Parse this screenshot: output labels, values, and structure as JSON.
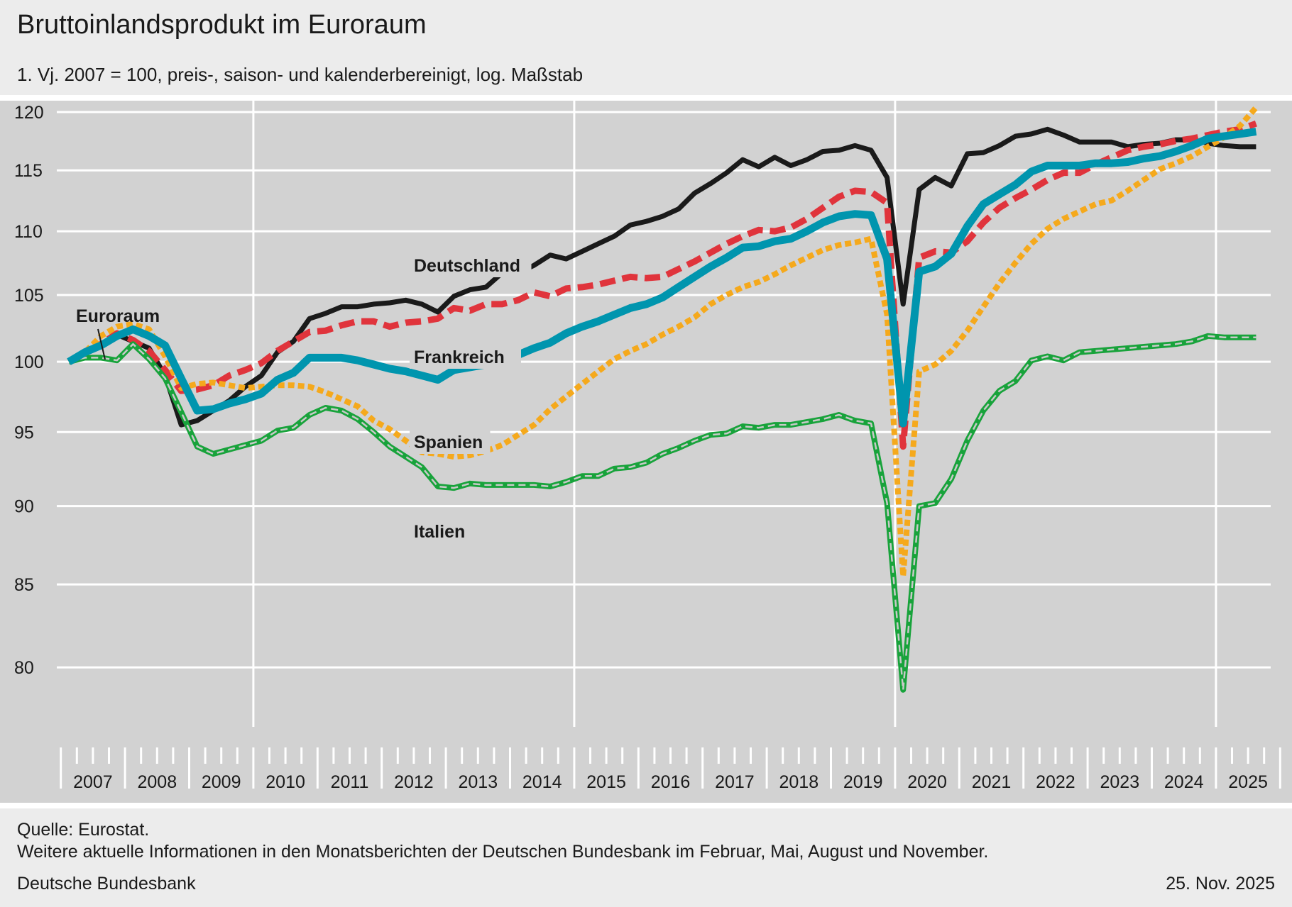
{
  "header": {
    "title": "Bruttoinlandsprodukt im Euroraum",
    "subtitle": "1. Vj. 2007 = 100, preis-, saison- und kalenderbereinigt, log. Maßstab"
  },
  "footer": {
    "source": "Quelle: Eurostat.",
    "note": "Weitere aktuelle Informationen in den Monatsberichten der Deutschen Bundesbank im Februar, Mai, August und November.",
    "publisher": "Deutsche Bundesbank",
    "date": "25. Nov. 2025"
  },
  "chart_data": {
    "type": "line",
    "title": "Bruttoinlandsprodukt im Euroraum",
    "subtitle": "1. Vj. 2007 = 100, preis-, saison- und kalenderbereinigt, log. Maßstab",
    "y_scale": "log",
    "ylim": [
      77,
      121
    ],
    "yticks": [
      80,
      85,
      90,
      95,
      100,
      105,
      110,
      115,
      120
    ],
    "x_start": "2007 Q1",
    "x_end": "2025 Q3",
    "xlim": [
      "2007 Q1",
      "2025 Q4"
    ],
    "year_labels": [
      "2007",
      "2008",
      "2009",
      "2010",
      "2011",
      "2012",
      "2013",
      "2014",
      "2015",
      "2016",
      "2017",
      "2018",
      "2019",
      "2020",
      "2021",
      "2022",
      "2023",
      "2024",
      "2025"
    ],
    "major_gridlines_at": [
      "2010",
      "2015",
      "2020",
      "2025"
    ],
    "grid": true,
    "legend": "inline labels",
    "series": [
      {
        "name": "Deutschland",
        "color": "#1a1a1a",
        "style": "solid",
        "values": [
          100,
          100.6,
          101.2,
          102,
          101.5,
          101,
          99,
          95.5,
          95.8,
          96.5,
          97.2,
          98.2,
          99,
          100.7,
          101.5,
          103.2,
          103.6,
          104.1,
          104.1,
          104.3,
          104.4,
          104.6,
          104.3,
          103.7,
          104.9,
          105.4,
          105.6,
          106.7,
          106.7,
          107.3,
          108.1,
          107.8,
          108.4,
          109,
          109.6,
          110.5,
          110.8,
          111.2,
          111.8,
          113.1,
          113.9,
          114.8,
          115.9,
          115.3,
          116.1,
          115.4,
          115.9,
          116.6,
          116.7,
          117.1,
          116.7,
          114.4,
          104.3,
          113.4,
          114.4,
          113.7,
          116.4,
          116.5,
          117.1,
          117.9,
          118.1,
          118.5,
          118,
          117.4,
          117.4,
          117.4,
          117,
          117.2,
          117.3,
          117.6,
          117.6,
          117.3,
          117.1,
          117,
          117
        ]
      },
      {
        "name": "Frankreich",
        "color": "#e0343c",
        "style": "dashed",
        "values": [
          100,
          100.6,
          101.3,
          102.1,
          101.6,
          100.8,
          99.4,
          97.9,
          98,
          98.3,
          99,
          99.4,
          99.9,
          100.8,
          101.5,
          102.2,
          102.3,
          102.7,
          103,
          103,
          102.6,
          102.9,
          103,
          103.2,
          104,
          103.8,
          104.3,
          104.3,
          104.6,
          105.2,
          104.9,
          105.5,
          105.6,
          105.8,
          106.1,
          106.4,
          106.3,
          106.4,
          107,
          107.6,
          108.3,
          109,
          109.6,
          110.1,
          110,
          110.3,
          111,
          111.9,
          112.8,
          113.3,
          113.2,
          112.3,
          94,
          107.9,
          108.4,
          108.3,
          109.2,
          110.7,
          111.9,
          112.7,
          113.4,
          114.2,
          114.8,
          114.8,
          115.5,
          116.1,
          116.7,
          117,
          117.2,
          117.5,
          117.7,
          118,
          118.3,
          118.5,
          119
        ]
      },
      {
        "name": "Spanien",
        "color": "#f5a91c",
        "style": "dotted",
        "values": [
          100,
          100.7,
          101.9,
          102.6,
          102.8,
          102.4,
          100.4,
          98.1,
          98.4,
          98.5,
          98.3,
          98.1,
          98.2,
          98.3,
          98.3,
          98.2,
          97.8,
          97.3,
          96.8,
          95.8,
          95.2,
          94.4,
          93.6,
          93.5,
          93.3,
          93.4,
          93.7,
          94.1,
          94.8,
          95.5,
          96.6,
          97.5,
          98.4,
          99.3,
          100.2,
          100.8,
          101.3,
          102,
          102.6,
          103.3,
          104.3,
          105,
          105.6,
          106,
          106.6,
          107.3,
          107.9,
          108.5,
          108.9,
          109.1,
          109.4,
          103.5,
          85.5,
          99.3,
          99.8,
          100.8,
          102.3,
          104.1,
          105.9,
          107.5,
          109,
          110.2,
          111,
          111.6,
          112.2,
          112.5,
          113.3,
          114.2,
          115.1,
          115.6,
          116.2,
          117,
          117.8,
          118.8,
          120.4
        ]
      },
      {
        "name": "Italien",
        "color": "#18a33b",
        "style": "solid-green-with-grey-core",
        "values": [
          100,
          100.3,
          100.3,
          100.1,
          101.3,
          100.2,
          98.8,
          96.4,
          94,
          93.5,
          93.8,
          94.1,
          94.4,
          95.1,
          95.3,
          96.2,
          96.7,
          96.5,
          95.9,
          95,
          94,
          93.3,
          92.6,
          91.3,
          91.2,
          91.5,
          91.4,
          91.4,
          91.4,
          91.4,
          91.3,
          91.6,
          92,
          92,
          92.5,
          92.6,
          92.9,
          93.5,
          93.9,
          94.4,
          94.8,
          94.9,
          95.4,
          95.3,
          95.5,
          95.5,
          95.7,
          95.9,
          96.2,
          95.8,
          95.6,
          90.2,
          78.7,
          90,
          90.2,
          91.8,
          94.4,
          96.5,
          97.9,
          98.6,
          100.1,
          100.4,
          100.1,
          100.7,
          100.8,
          100.9,
          101,
          101.1,
          101.2,
          101.3,
          101.5,
          101.9,
          101.8,
          101.8,
          101.8
        ]
      },
      {
        "name": "Euroraum",
        "color": "#0095ae",
        "style": "solid-thick",
        "values": [
          100,
          100.7,
          101.2,
          101.9,
          102.4,
          101.9,
          101.2,
          98.8,
          96.5,
          96.6,
          97,
          97.3,
          97.7,
          98.7,
          99.2,
          100.3,
          100.3,
          100.3,
          100.1,
          99.8,
          99.5,
          99.3,
          99,
          98.7,
          99.4,
          99.6,
          99.8,
          100.2,
          100.5,
          101,
          101.4,
          102.1,
          102.6,
          103,
          103.5,
          104,
          104.3,
          104.8,
          105.6,
          106.4,
          107.2,
          107.9,
          108.7,
          108.8,
          109.2,
          109.4,
          110,
          110.7,
          111.2,
          111.4,
          111.3,
          107.8,
          95.6,
          106.8,
          107.2,
          108.2,
          110.4,
          112.2,
          113,
          113.8,
          114.9,
          115.4,
          115.4,
          115.4,
          115.6,
          115.6,
          115.7,
          116,
          116.2,
          116.6,
          117.1,
          117.7,
          117.9,
          118.1,
          118.3
        ]
      }
    ],
    "inline_labels": [
      "Deutschland",
      "Frankreich",
      "Spanien",
      "Italien",
      "Euroraum"
    ]
  }
}
